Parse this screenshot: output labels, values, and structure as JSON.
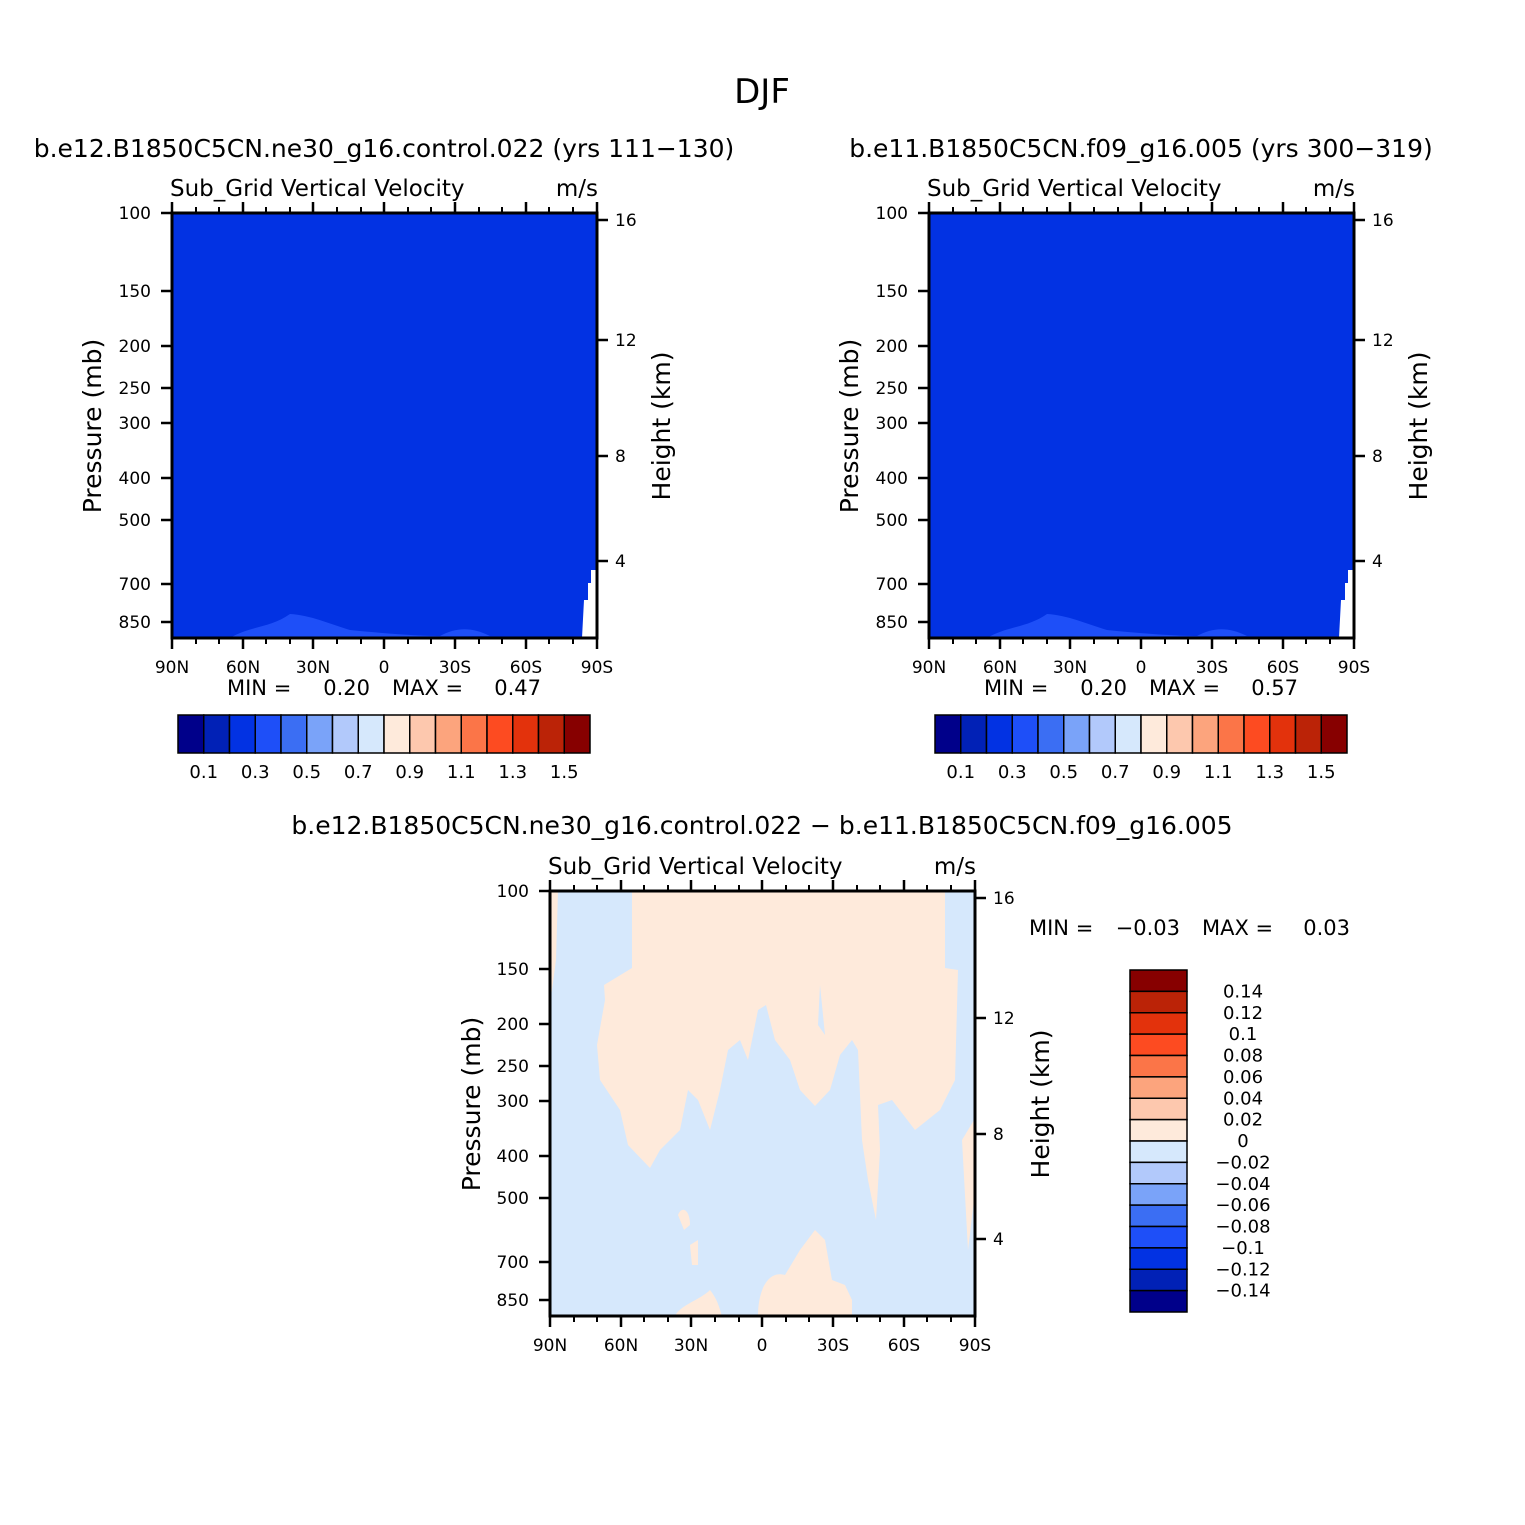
{
  "page_title": "DJF",
  "chart_data": [
    {
      "type": "heatmap",
      "id": "model1",
      "title": "b.e12.B1850C5CN.ne30_g16.control.022 (yrs 111-130)",
      "subtitle_left": "Sub_Grid Vertical Velocity",
      "subtitle_right": "m/s",
      "ylabel": "Pressure (mb)",
      "ylabel_right": "Height (km)",
      "x_ticks": [
        "90N",
        "60N",
        "30N",
        "0",
        "30S",
        "60S",
        "90S"
      ],
      "y_ticks": [
        "100",
        "150",
        "200",
        "250",
        "300",
        "400",
        "500",
        "700",
        "850"
      ],
      "y_ticks_right": [
        "16",
        "12",
        "8",
        "4"
      ],
      "min_label": "MIN =",
      "min_value": "0.20",
      "max_label": "MAX =",
      "max_value": "0.47",
      "background_color": "#0232e3",
      "legend": {
        "colors": [
          "#00008a",
          "#0121b6",
          "#0232e3",
          "#1e4ff8",
          "#3b6ef3",
          "#7aa3f9",
          "#b2c9fb",
          "#d6e8fc",
          "#feeadb",
          "#fdc8ae",
          "#fca47d",
          "#fb7548",
          "#fd4b21",
          "#e3320c",
          "#bb2307",
          "#870000"
        ],
        "labels": [
          "0.1",
          "0.3",
          "0.5",
          "0.7",
          "0.9",
          "1.1",
          "1.3",
          "1.5"
        ]
      }
    },
    {
      "type": "heatmap",
      "id": "model2",
      "title": "b.e11.B1850C5CN.f09_g16.005 (yrs 300-319)",
      "subtitle_left": "Sub_Grid Vertical Velocity",
      "subtitle_right": "m/s",
      "ylabel": "Pressure (mb)",
      "ylabel_right": "Height (km)",
      "x_ticks": [
        "90N",
        "60N",
        "30N",
        "0",
        "30S",
        "60S",
        "90S"
      ],
      "y_ticks": [
        "100",
        "150",
        "200",
        "250",
        "300",
        "400",
        "500",
        "700",
        "850"
      ],
      "y_ticks_right": [
        "16",
        "12",
        "8",
        "4"
      ],
      "min_label": "MIN =",
      "min_value": "0.20",
      "max_label": "MAX =",
      "max_value": "0.57",
      "background_color": "#0232e3",
      "legend": {
        "colors": [
          "#00008a",
          "#0121b6",
          "#0232e3",
          "#1e4ff8",
          "#3b6ef3",
          "#7aa3f9",
          "#b2c9fb",
          "#d6e8fc",
          "#feeadb",
          "#fdc8ae",
          "#fca47d",
          "#fb7548",
          "#fd4b21",
          "#e3320c",
          "#bb2307",
          "#870000"
        ],
        "labels": [
          "0.1",
          "0.3",
          "0.5",
          "0.7",
          "0.9",
          "1.1",
          "1.3",
          "1.5"
        ]
      }
    },
    {
      "type": "heatmap",
      "id": "difference",
      "title": "b.e12.B1850C5CN.ne30_g16.control.022 - b.e11.B1850C5CN.f09_g16.005",
      "subtitle_left": "Sub_Grid Vertical Velocity",
      "subtitle_right": "m/s",
      "ylabel": "Pressure (mb)",
      "ylabel_right": "Height (km)",
      "x_ticks": [
        "90N",
        "60N",
        "30N",
        "0",
        "30S",
        "60S",
        "90S"
      ],
      "y_ticks": [
        "100",
        "150",
        "200",
        "250",
        "300",
        "400",
        "500",
        "700",
        "850"
      ],
      "y_ticks_right": [
        "16",
        "12",
        "8",
        "4"
      ],
      "min_label": "MIN =",
      "min_value": "-0.03",
      "max_label": "MAX =",
      "max_value": "0.03",
      "background_color": "#d6e8fc",
      "positive_color": "#feeadb",
      "legend": {
        "colors_top_to_bottom": [
          "#870000",
          "#bb2307",
          "#e3320c",
          "#fd4b21",
          "#fb7548",
          "#fca47d",
          "#fdc8ae",
          "#feeadb",
          "#d6e8fc",
          "#b2c9fb",
          "#7aa3f9",
          "#3b6ef3",
          "#1e4ff8",
          "#0232e3",
          "#0121b6",
          "#00008a"
        ],
        "labels": [
          "0.14",
          "0.12",
          "0.1",
          "0.08",
          "0.06",
          "0.04",
          "0.02",
          "0",
          "-0.02",
          "-0.04",
          "-0.06",
          "-0.08",
          "-0.1",
          "-0.12",
          "-0.14"
        ]
      }
    }
  ]
}
